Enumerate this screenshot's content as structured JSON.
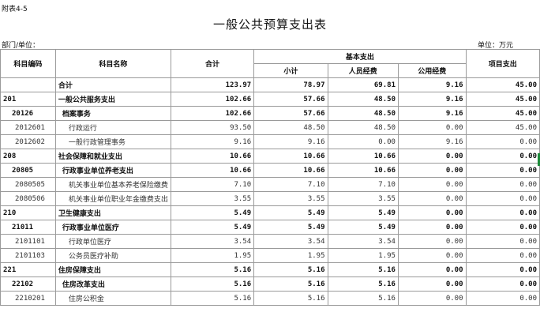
{
  "attachment_label": "附表4-5",
  "title": "一般公共预算支出表",
  "department_label": "部门/单位：",
  "unit_label": "单位：万元",
  "headers": {
    "code": "科目编码",
    "name": "科目名称",
    "total": "合计",
    "basic": "基本支出",
    "subtotal": "小计",
    "personnel": "人员经费",
    "public": "公用经费",
    "project": "项目支出"
  },
  "rows": [
    {
      "code": "",
      "name": "合计",
      "total": "123.97",
      "subtotal": "78.97",
      "personnel": "69.81",
      "public": "9.16",
      "project": "45.00"
    },
    {
      "code": "201",
      "name": "一般公共服务支出",
      "total": "102.66",
      "subtotal": "57.66",
      "personnel": "48.50",
      "public": "9.16",
      "project": "45.00"
    },
    {
      "code": "20126",
      "name": "档案事务",
      "total": "102.66",
      "subtotal": "57.66",
      "personnel": "48.50",
      "public": "9.16",
      "project": "45.00"
    },
    {
      "code": "2012601",
      "name": "行政运行",
      "total": "93.50",
      "subtotal": "48.50",
      "personnel": "48.50",
      "public": "0.00",
      "project": "45.00"
    },
    {
      "code": "2012602",
      "name": "一般行政管理事务",
      "total": "9.16",
      "subtotal": "9.16",
      "personnel": "0.00",
      "public": "9.16",
      "project": "0.00"
    },
    {
      "code": "208",
      "name": "社会保障和就业支出",
      "total": "10.66",
      "subtotal": "10.66",
      "personnel": "10.66",
      "public": "0.00",
      "project": "0.00"
    },
    {
      "code": "20805",
      "name": "行政事业单位养老支出",
      "total": "10.66",
      "subtotal": "10.66",
      "personnel": "10.66",
      "public": "0.00",
      "project": "0.00"
    },
    {
      "code": "2080505",
      "name": "机关事业单位基本养老保险缴费",
      "total": "7.10",
      "subtotal": "7.10",
      "personnel": "7.10",
      "public": "0.00",
      "project": "0.00"
    },
    {
      "code": "2080506",
      "name": "机关事业单位职业年金缴费支出",
      "total": "3.55",
      "subtotal": "3.55",
      "personnel": "3.55",
      "public": "0.00",
      "project": "0.00"
    },
    {
      "code": "210",
      "name": "卫生健康支出",
      "total": "5.49",
      "subtotal": "5.49",
      "personnel": "5.49",
      "public": "0.00",
      "project": "0.00"
    },
    {
      "code": "21011",
      "name": "行政事业单位医疗",
      "total": "5.49",
      "subtotal": "5.49",
      "personnel": "5.49",
      "public": "0.00",
      "project": "0.00"
    },
    {
      "code": "2101101",
      "name": "行政单位医疗",
      "total": "3.54",
      "subtotal": "3.54",
      "personnel": "3.54",
      "public": "0.00",
      "project": "0.00"
    },
    {
      "code": "2101103",
      "name": "公务员医疗补助",
      "total": "1.95",
      "subtotal": "1.95",
      "personnel": "1.95",
      "public": "0.00",
      "project": "0.00"
    },
    {
      "code": "221",
      "name": "住房保障支出",
      "total": "5.16",
      "subtotal": "5.16",
      "personnel": "5.16",
      "public": "0.00",
      "project": "0.00"
    },
    {
      "code": "22102",
      "name": "住房改革支出",
      "total": "5.16",
      "subtotal": "5.16",
      "personnel": "5.16",
      "public": "0.00",
      "project": "0.00"
    },
    {
      "code": "2210201",
      "name": "住房公积金",
      "total": "5.16",
      "subtotal": "5.16",
      "personnel": "5.16",
      "public": "0.00",
      "project": "0.00"
    }
  ]
}
